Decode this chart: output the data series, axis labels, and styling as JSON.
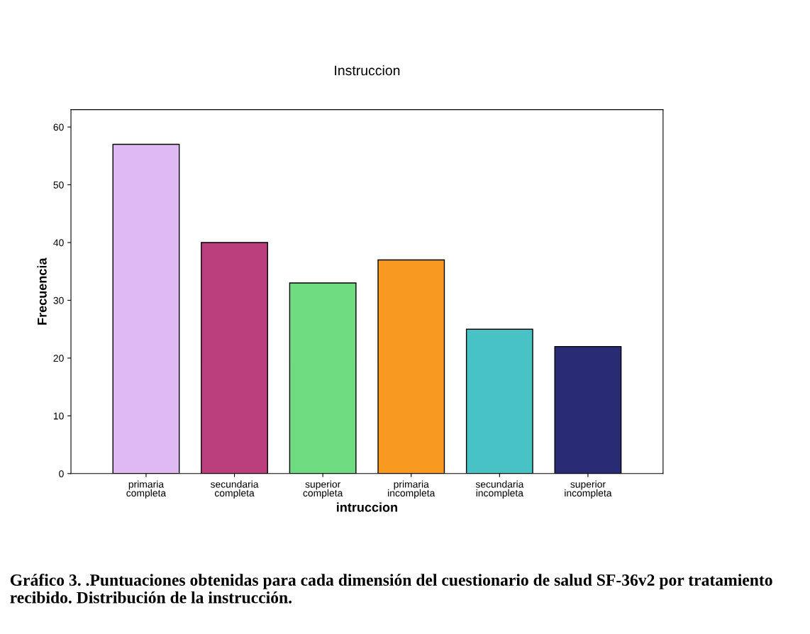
{
  "chart_data": {
    "type": "bar",
    "title": "Instruccion",
    "xlabel": "intruccion",
    "ylabel": "Frecuencia",
    "categories": [
      "primaria\ncompleta",
      "secundaria\ncompleta",
      "superior\ncompleta",
      "primaria\nincompleta",
      "secundaria\nincompleta",
      "superior\nincompleta"
    ],
    "values": [
      57,
      40,
      33,
      37,
      25,
      22
    ],
    "colors": [
      "#dfb9f2",
      "#bb3f7d",
      "#70dc82",
      "#f99a20",
      "#49c2c6",
      "#292b75"
    ],
    "ylim": [
      0,
      63
    ],
    "yticks": [
      0,
      10,
      20,
      30,
      40,
      50,
      60
    ],
    "grid": false,
    "annotations": [
      "Gráfico 3. .Puntuaciones obtenidas para cada dimensión del cuestionario de salud SF-36v2 por tratamiento recibido. Distribución de la instrucción."
    ]
  }
}
